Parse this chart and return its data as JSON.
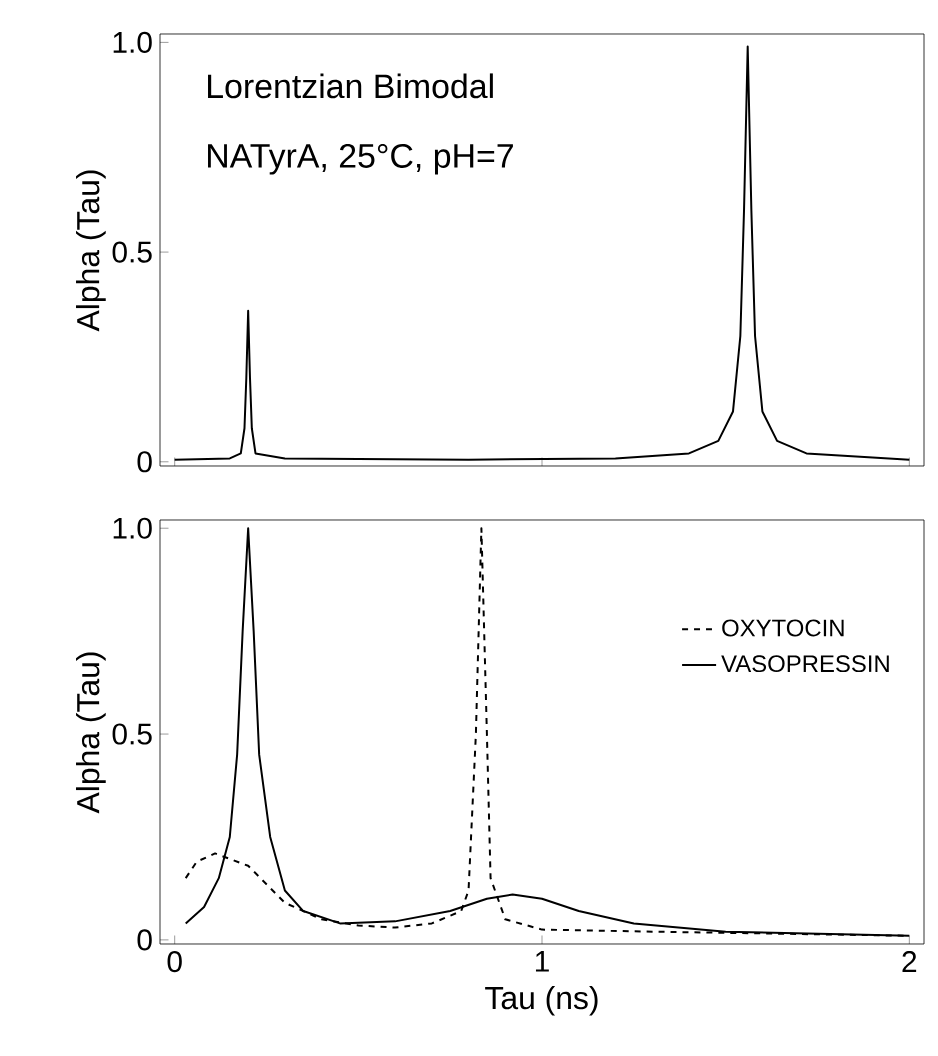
{
  "chart_data": [
    {
      "type": "line",
      "annotations": [
        "Lorentzian Bimodal",
        "NATyrA, 25°C, pH=7"
      ],
      "ylabel": "Alpha (Tau)",
      "xlim": [
        -0.04,
        2.04
      ],
      "ylim": [
        -0.01,
        1.02
      ],
      "xticks": [
        0,
        1,
        2
      ],
      "yticks": [
        0,
        0.5,
        {
          "value": 1,
          "label": "1.0"
        }
      ],
      "tick_labels": "y",
      "series": [
        {
          "color": "#000000",
          "line_style": "solid",
          "x": [
            0.0,
            0.15,
            0.18,
            0.19,
            0.195,
            0.2,
            0.205,
            0.21,
            0.22,
            0.3,
            0.8,
            1.2,
            1.4,
            1.48,
            1.52,
            1.54,
            1.55,
            1.56,
            1.57,
            1.58,
            1.6,
            1.64,
            1.72,
            1.9,
            2.0
          ],
          "values": [
            0.005,
            0.008,
            0.02,
            0.08,
            0.2,
            0.36,
            0.2,
            0.08,
            0.02,
            0.008,
            0.005,
            0.008,
            0.02,
            0.05,
            0.12,
            0.3,
            0.6,
            0.99,
            0.6,
            0.3,
            0.12,
            0.05,
            0.02,
            0.01,
            0.005
          ]
        }
      ]
    },
    {
      "type": "line",
      "xlabel": "Tau (ns)",
      "ylabel": "Alpha (Tau)",
      "xlim": [
        -0.04,
        2.04
      ],
      "ylim": [
        -0.01,
        1.02
      ],
      "xticks": [
        0,
        1,
        2
      ],
      "yticks": [
        0,
        0.5,
        {
          "value": 1,
          "label": "1.0"
        }
      ],
      "legend": "right",
      "series": [
        {
          "name": "OXYTOCIN",
          "color": "#000000",
          "line_style": "dashed",
          "x": [
            0.03,
            0.06,
            0.11,
            0.2,
            0.3,
            0.4,
            0.5,
            0.6,
            0.7,
            0.78,
            0.8,
            0.82,
            0.835,
            0.85,
            0.86,
            0.9,
            1.0,
            1.3,
            2.0
          ],
          "values": [
            0.15,
            0.19,
            0.21,
            0.18,
            0.09,
            0.05,
            0.035,
            0.03,
            0.04,
            0.07,
            0.12,
            0.5,
            1.0,
            0.5,
            0.15,
            0.05,
            0.025,
            0.02,
            0.01
          ]
        },
        {
          "name": "VASOPRESSIN",
          "color": "#000000",
          "line_style": "solid",
          "x": [
            0.03,
            0.08,
            0.12,
            0.15,
            0.17,
            0.185,
            0.2,
            0.215,
            0.23,
            0.26,
            0.3,
            0.35,
            0.45,
            0.6,
            0.75,
            0.85,
            0.92,
            1.0,
            1.1,
            1.25,
            1.5,
            2.0
          ],
          "values": [
            0.04,
            0.08,
            0.15,
            0.25,
            0.45,
            0.75,
            1.0,
            0.75,
            0.45,
            0.25,
            0.12,
            0.07,
            0.04,
            0.045,
            0.07,
            0.1,
            0.11,
            0.1,
            0.07,
            0.04,
            0.02,
            0.01
          ]
        }
      ]
    }
  ]
}
